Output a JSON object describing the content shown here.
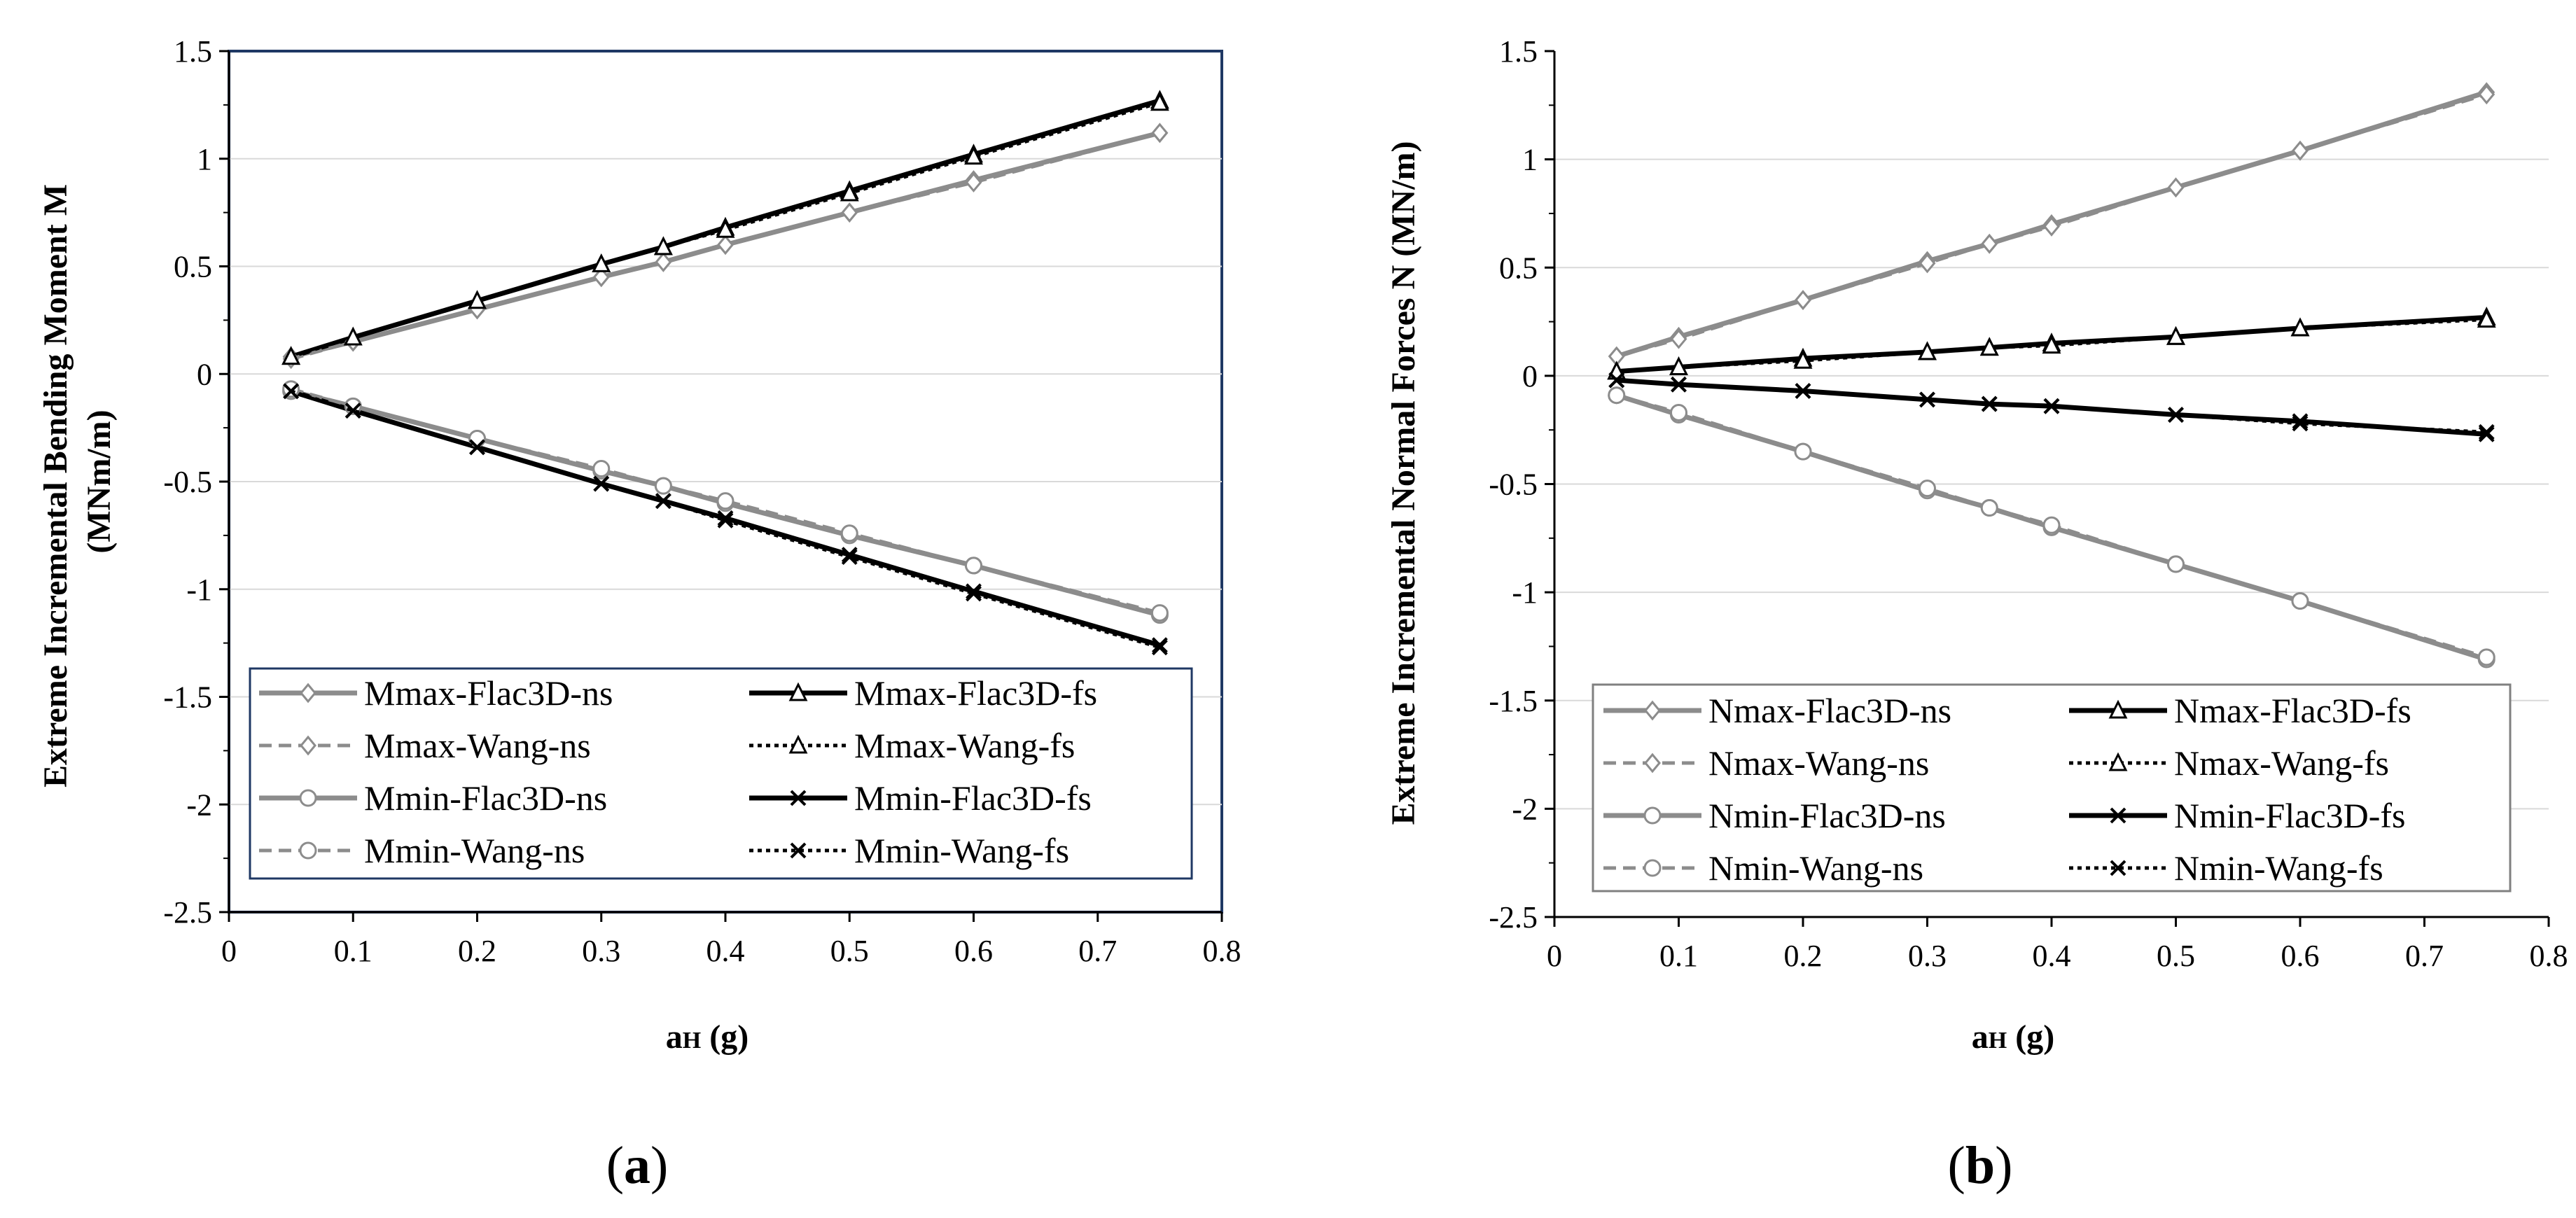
{
  "chart_data": [
    {
      "type": "line",
      "panel_label_prefix": "(",
      "panel_label": "a",
      "panel_label_suffix": ")",
      "ylabel_line1": "Extreme Incremental Bending Moment M",
      "ylabel_line2": "(MNm/m)",
      "xlabel_main": "a",
      "xlabel_sub": "H",
      "xlabel_unit": " (g)",
      "xlim": [
        0,
        0.8
      ],
      "ylim": [
        -2.5,
        1.5
      ],
      "x_ticks": [
        "0",
        "0.1",
        "0.2",
        "0.3",
        "0.4",
        "0.5",
        "0.6",
        "0.7",
        "0.8"
      ],
      "y_ticks": [
        "1.5",
        "1",
        "0.5",
        "0",
        "-0.5",
        "-1",
        "-1.5",
        "-2",
        "-2.5"
      ],
      "grid": "horizontal",
      "legend_position": "lower-center",
      "x": [
        0.05,
        0.1,
        0.2,
        0.3,
        0.35,
        0.4,
        0.5,
        0.6,
        0.75
      ],
      "series": [
        {
          "name": "Mmax-Flac3D-ns",
          "color": "#8c8c8c",
          "dash": "solid",
          "marker": "diamond",
          "values": [
            0.08,
            0.15,
            0.3,
            0.45,
            0.52,
            0.6,
            0.75,
            0.9,
            1.12
          ]
        },
        {
          "name": "Mmax-Flac3D-fs",
          "color": "#000000",
          "dash": "solid",
          "marker": "triangle",
          "values": [
            0.08,
            0.17,
            0.34,
            0.51,
            0.59,
            0.68,
            0.85,
            1.02,
            1.27
          ]
        },
        {
          "name": "Mmax-Wang-ns",
          "color": "#8c8c8c",
          "dash": "dashed",
          "marker": "diamond",
          "values": [
            0.07,
            0.15,
            0.3,
            0.45,
            0.52,
            0.6,
            0.75,
            0.89,
            1.12
          ]
        },
        {
          "name": "Mmax-Wang-fs",
          "color": "#000000",
          "dash": "dotted",
          "marker": "triangle",
          "values": [
            0.08,
            0.17,
            0.34,
            0.51,
            0.59,
            0.67,
            0.84,
            1.01,
            1.26
          ]
        },
        {
          "name": "Mmin-Flac3D-ns",
          "color": "#8c8c8c",
          "dash": "solid",
          "marker": "circle",
          "values": [
            -0.08,
            -0.15,
            -0.3,
            -0.45,
            -0.52,
            -0.6,
            -0.75,
            -0.89,
            -1.12
          ]
        },
        {
          "name": "Mmin-Flac3D-fs",
          "color": "#000000",
          "dash": "solid",
          "marker": "x",
          "values": [
            -0.08,
            -0.17,
            -0.34,
            -0.51,
            -0.59,
            -0.67,
            -0.84,
            -1.01,
            -1.26
          ]
        },
        {
          "name": "Mmin-Wang-ns",
          "color": "#8c8c8c",
          "dash": "dashed",
          "marker": "circle",
          "values": [
            -0.07,
            -0.15,
            -0.3,
            -0.44,
            -0.52,
            -0.59,
            -0.74,
            -0.89,
            -1.11
          ]
        },
        {
          "name": "Mmin-Wang-fs",
          "color": "#000000",
          "dash": "dotted",
          "marker": "x",
          "values": [
            -0.08,
            -0.17,
            -0.34,
            -0.51,
            -0.59,
            -0.68,
            -0.85,
            -1.02,
            -1.27
          ]
        }
      ]
    },
    {
      "type": "line",
      "panel_label_prefix": "(",
      "panel_label": "b",
      "panel_label_suffix": ")",
      "ylabel_line1": "Extreme Incremental Normal Forces N (MN/m)",
      "ylabel_line2": "",
      "xlabel_main": "a",
      "xlabel_sub": "H",
      "xlabel_unit": " (g)",
      "xlim": [
        0,
        0.8
      ],
      "ylim": [
        -2.5,
        1.5
      ],
      "x_ticks": [
        "0",
        "0.1",
        "0.2",
        "0.3",
        "0.4",
        "0.5",
        "0.6",
        "0.7",
        "0.8"
      ],
      "y_ticks": [
        "1.5",
        "1",
        "0.5",
        "0",
        "-0.5",
        "-1",
        "-1.5",
        "-2",
        "-2.5"
      ],
      "grid": "horizontal",
      "legend_position": "lower-center",
      "x": [
        0.05,
        0.1,
        0.2,
        0.3,
        0.35,
        0.4,
        0.5,
        0.6,
        0.75
      ],
      "series": [
        {
          "name": "Nmax-Flac3D-ns",
          "color": "#8c8c8c",
          "dash": "solid",
          "marker": "diamond",
          "values": [
            0.09,
            0.18,
            0.35,
            0.53,
            0.61,
            0.7,
            0.87,
            1.04,
            1.31
          ]
        },
        {
          "name": "Nmax-Flac3D-fs",
          "color": "#000000",
          "dash": "solid",
          "marker": "triangle",
          "values": [
            0.02,
            0.04,
            0.08,
            0.11,
            0.13,
            0.15,
            0.18,
            0.22,
            0.27
          ]
        },
        {
          "name": "Nmax-Wang-ns",
          "color": "#8c8c8c",
          "dash": "dashed",
          "marker": "diamond",
          "values": [
            0.09,
            0.17,
            0.35,
            0.52,
            0.61,
            0.69,
            0.87,
            1.04,
            1.3
          ]
        },
        {
          "name": "Nmax-Wang-fs",
          "color": "#000000",
          "dash": "dotted",
          "marker": "triangle",
          "values": [
            0.02,
            0.04,
            0.07,
            0.11,
            0.13,
            0.14,
            0.18,
            0.22,
            0.26
          ]
        },
        {
          "name": "Nmin-Flac3D-ns",
          "color": "#8c8c8c",
          "dash": "solid",
          "marker": "circle",
          "values": [
            -0.09,
            -0.18,
            -0.35,
            -0.53,
            -0.61,
            -0.7,
            -0.87,
            -1.04,
            -1.31
          ]
        },
        {
          "name": "Nmin-Flac3D-fs",
          "color": "#000000",
          "dash": "solid",
          "marker": "x",
          "values": [
            -0.02,
            -0.04,
            -0.07,
            -0.11,
            -0.13,
            -0.14,
            -0.18,
            -0.21,
            -0.27
          ]
        },
        {
          "name": "Nmin-Wang-ns",
          "color": "#8c8c8c",
          "dash": "dashed",
          "marker": "circle",
          "values": [
            -0.09,
            -0.17,
            -0.35,
            -0.52,
            -0.61,
            -0.69,
            -0.87,
            -1.04,
            -1.3
          ]
        },
        {
          "name": "Nmin-Wang-fs",
          "color": "#000000",
          "dash": "dotted",
          "marker": "x",
          "values": [
            -0.02,
            -0.04,
            -0.07,
            -0.11,
            -0.13,
            -0.14,
            -0.18,
            -0.22,
            -0.26
          ]
        }
      ]
    }
  ]
}
